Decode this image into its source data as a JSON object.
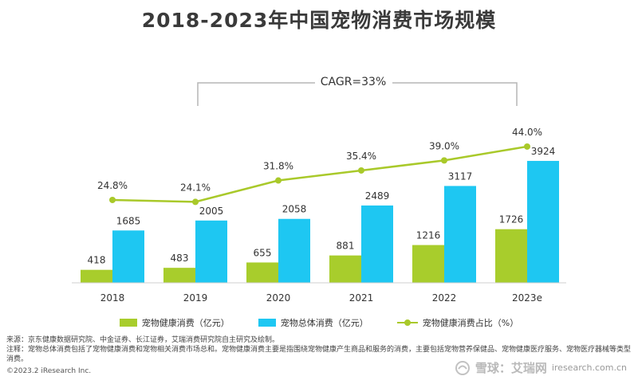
{
  "title": "2018-2023年中国宠物消费市场规模",
  "cagr_label": "CAGR=33%",
  "colors": {
    "health_bar": "#a8cd2c",
    "total_bar": "#1ec7f2",
    "ratio_line": "#a9c92a",
    "axis": "#cfcfcf",
    "bracket": "#b5b5b5"
  },
  "legend": {
    "health": "宠物健康消费（亿元）",
    "total": "宠物总体消费（亿元）",
    "ratio": "宠物健康消费占比（%）"
  },
  "chart_data": {
    "type": "bar+line",
    "categories": [
      "2018",
      "2019",
      "2020",
      "2021",
      "2022",
      "2023e"
    ],
    "series": [
      {
        "name": "宠物健康消费（亿元）",
        "type": "bar",
        "values": [
          418,
          483,
          655,
          881,
          1216,
          1726
        ]
      },
      {
        "name": "宠物总体消费（亿元）",
        "type": "bar",
        "values": [
          1685,
          2005,
          2058,
          2489,
          3117,
          3924
        ]
      },
      {
        "name": "宠物健康消费占比（%）",
        "type": "line",
        "values": [
          24.8,
          24.1,
          31.8,
          35.4,
          39.0,
          44.0
        ],
        "labels": [
          "24.8%",
          "24.1%",
          "31.8%",
          "35.4%",
          "39.0%",
          "44.0%"
        ]
      }
    ],
    "annotations": [
      "CAGR=33%"
    ],
    "grid": false,
    "legend_position": "bottom"
  },
  "notes": {
    "source": "来源：京东健康数据研究院、中金证券、长江证券，艾瑞消费研究院自主研究及绘制。",
    "remark": "注释：宠物总体消费包括了宠物健康消费和宠物相关消费市场总和。宠物健康消费主要是指围绕宠物健康产生商品和服务的消费，主要包括宠物营养保健品、宠物健康医疗服务、宠物医疗器械等类型消费。"
  },
  "copyright": "©2023.2 iResearch Inc.",
  "watermark": {
    "brand": "雪球：艾瑞网",
    "url": "iresearch.com.cn"
  }
}
